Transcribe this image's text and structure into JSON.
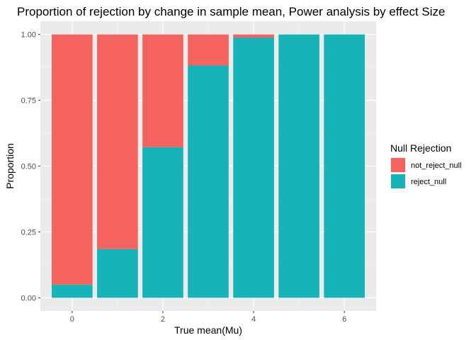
{
  "chart_data": {
    "type": "bar",
    "stacked": true,
    "title": "Proportion of rejection by change in sample mean, Power analysis by effect Size",
    "xlabel": "True mean(Mu)",
    "ylabel": "Proportion",
    "x": [
      0,
      1,
      2,
      3,
      4,
      5,
      6
    ],
    "xticks": [
      "0",
      "2",
      "4",
      "6"
    ],
    "xlim": [
      -0.7,
      6.7
    ],
    "ylim": [
      -0.05,
      1.05
    ],
    "yticks": [
      "0.00",
      "0.25",
      "0.50",
      "0.75",
      "1.00"
    ],
    "grid": true,
    "legend": {
      "title": "Null Rejection",
      "position": "right"
    },
    "series": [
      {
        "name": "reject_null",
        "color": "#17b3b9",
        "values": [
          0.05,
          0.185,
          0.572,
          0.882,
          0.988,
          1.0,
          1.0
        ]
      },
      {
        "name": "not_reject_null",
        "color": "#f4635f",
        "values": [
          0.95,
          0.815,
          0.428,
          0.118,
          0.012,
          0.0,
          0.0
        ]
      }
    ],
    "legend_order": [
      "not_reject_null",
      "reject_null"
    ]
  }
}
